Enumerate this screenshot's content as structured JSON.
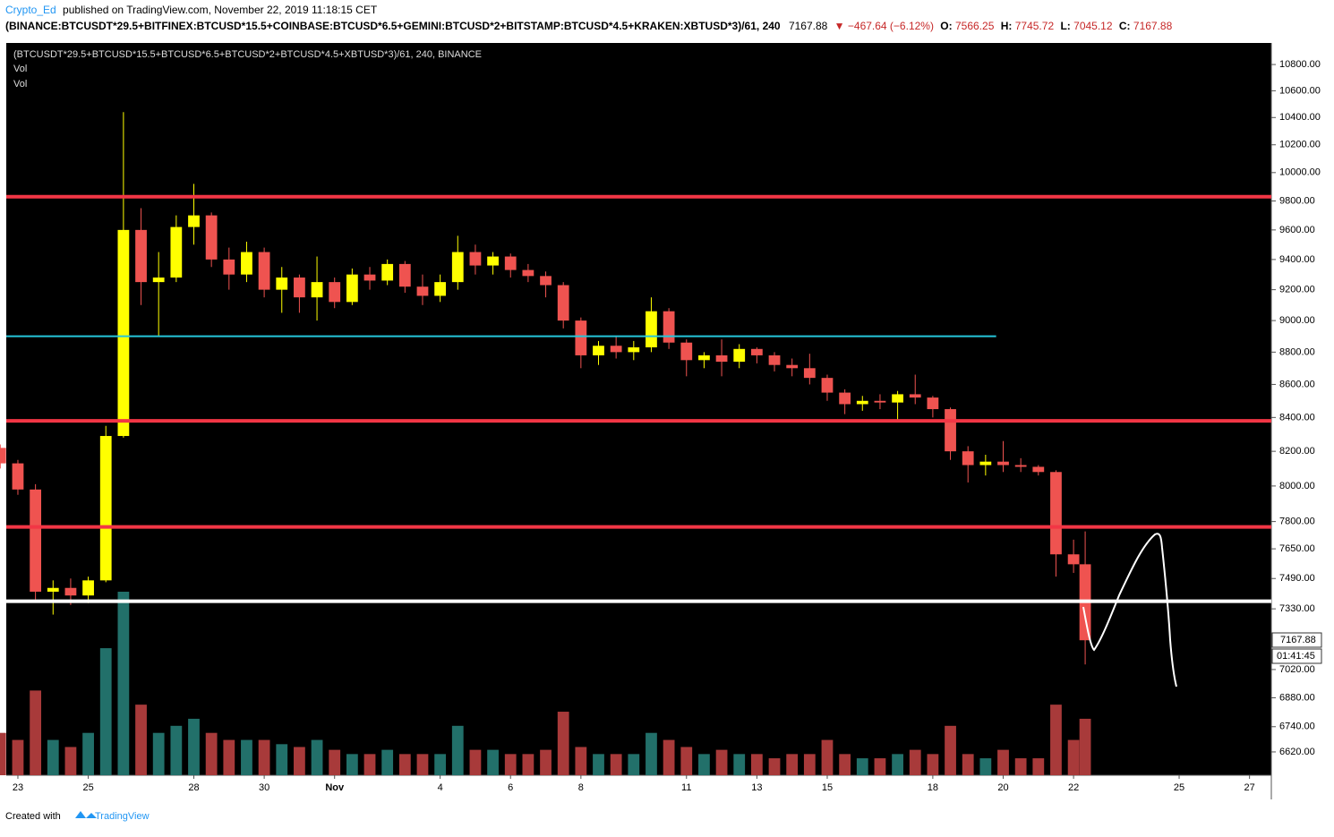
{
  "header": {
    "author": "Crypto_Ed",
    "published": "published on TradingView.com, November 22, 2019 11:18:15 CET",
    "symbol": "(BINANCE:BTCUSDT*29.5+BITFINEX:BTCUSD*15.5+COINBASE:BTCUSD*6.5+GEMINI:BTCUSD*2+BITSTAMP:BTCUSD*4.5+KRAKEN:XBTUSD*3)/61, 240",
    "last": "7167.88",
    "change": "▼ −467.64 (−6.12%)",
    "o_label": "O:",
    "o": "7566.25",
    "h_label": "H:",
    "h": "7745.72",
    "l_label": "L:",
    "l": "7045.12",
    "c_label": "C:",
    "c": "7167.88"
  },
  "chart_data": {
    "type": "candlestick",
    "log_scale": true,
    "grid": false,
    "legend_lines": [
      "(BTCUSDT*29.5+BTCUSD*15.5+BTCUSD*6.5+BTCUSD*2+BTCUSD*4.5+XBTUSD*3)/61, 240, BINANCE",
      "Vol",
      "Vol"
    ],
    "price_tag": "7167.88",
    "timer": "01:41:45",
    "up_color": "#ffff00",
    "down_color": "#ef5350",
    "vol_up_color": "#22706a",
    "vol_down_color": "#a83a3a",
    "x": [
      22.5,
      23,
      23.5,
      24,
      24.5,
      25,
      25.5,
      26,
      26.5,
      27,
      27.5,
      28,
      28.5,
      29,
      29.5,
      30,
      30.5,
      31,
      31.5,
      32,
      32.5,
      33,
      33.5,
      34,
      34.5,
      35,
      35.5,
      36,
      36.5,
      37,
      37.5,
      38,
      38.5,
      39,
      39.5,
      40,
      40.5,
      41,
      41.5,
      42,
      42.5,
      43,
      43.5,
      44,
      44.5,
      45,
      45.5,
      46,
      46.5,
      47,
      47.5,
      48,
      48.5,
      49,
      49.5,
      50,
      50.5,
      51,
      51.5,
      52,
      52.5,
      53,
      53.33
    ],
    "open": [
      8220,
      8130,
      7980,
      7420,
      7440,
      7400,
      7480,
      8290,
      9600,
      9250,
      9280,
      9620,
      9700,
      9400,
      9300,
      9450,
      9200,
      9280,
      9150,
      9250,
      9120,
      9300,
      9260,
      9370,
      9220,
      9160,
      9250,
      9450,
      9360,
      9420,
      9330,
      9290,
      9230,
      9000,
      8780,
      8840,
      8800,
      8830,
      9060,
      8860,
      8750,
      8780,
      8740,
      8820,
      8780,
      8720,
      8700,
      8640,
      8550,
      8480,
      8500,
      8490,
      8540,
      8520,
      8450,
      8200,
      8120,
      8140,
      8120,
      8110,
      8080,
      7620,
      7566.25
    ],
    "high": [
      8240,
      8150,
      8010,
      7480,
      7490,
      7500,
      8350,
      10440,
      9750,
      9450,
      9700,
      9920,
      9720,
      9480,
      9520,
      9480,
      9350,
      9300,
      9420,
      9280,
      9340,
      9350,
      9400,
      9390,
      9300,
      9300,
      9560,
      9500,
      9450,
      9440,
      9370,
      9320,
      9250,
      9020,
      8870,
      8900,
      8870,
      9150,
      9080,
      8880,
      8800,
      8880,
      8850,
      8830,
      8800,
      8760,
      8790,
      8660,
      8570,
      8530,
      8540,
      8560,
      8660,
      8530,
      8460,
      8230,
      8180,
      8260,
      8160,
      8120,
      8090,
      7700,
      7745.72
    ],
    "low": [
      8100,
      7950,
      7380,
      7300,
      7350,
      7360,
      7470,
      8280,
      9100,
      8900,
      9250,
      9500,
      9350,
      9200,
      9250,
      9150,
      9050,
      9050,
      9000,
      9080,
      9100,
      9200,
      9230,
      9180,
      9100,
      9120,
      9200,
      9300,
      9300,
      9280,
      9250,
      9150,
      8950,
      8700,
      8720,
      8760,
      8750,
      8800,
      8820,
      8650,
      8700,
      8650,
      8700,
      8730,
      8680,
      8650,
      8600,
      8500,
      8420,
      8440,
      8450,
      8380,
      8480,
      8400,
      8150,
      8020,
      8060,
      8080,
      8080,
      8060,
      7500,
      7520,
      7045.12
    ],
    "close": [
      8130,
      7980,
      7420,
      7440,
      7400,
      7480,
      8290,
      9600,
      9250,
      9280,
      9620,
      9700,
      9400,
      9300,
      9450,
      9200,
      9280,
      9150,
      9250,
      9120,
      9300,
      9260,
      9370,
      9220,
      9160,
      9250,
      9450,
      9360,
      9420,
      9330,
      9290,
      9230,
      9000,
      8780,
      8840,
      8800,
      8830,
      9060,
      8860,
      8750,
      8780,
      8740,
      8820,
      8780,
      8720,
      8700,
      8640,
      8550,
      8480,
      8500,
      8490,
      8540,
      8520,
      8450,
      8200,
      8120,
      8140,
      8120,
      8110,
      8080,
      7620,
      7566.25,
      7167.88
    ],
    "volume": [
      30,
      25,
      60,
      25,
      20,
      30,
      90,
      130,
      50,
      30,
      35,
      40,
      30,
      25,
      25,
      25,
      22,
      20,
      25,
      18,
      15,
      15,
      18,
      15,
      15,
      15,
      35,
      18,
      18,
      15,
      15,
      18,
      45,
      20,
      15,
      15,
      15,
      30,
      25,
      20,
      15,
      18,
      15,
      15,
      12,
      15,
      15,
      25,
      15,
      12,
      12,
      15,
      18,
      15,
      35,
      15,
      12,
      18,
      12,
      12,
      50,
      25,
      40
    ],
    "levels": [
      {
        "value": 9830,
        "color": "#f23645"
      },
      {
        "value": 8900,
        "color": "#26c6da",
        "x_end": 50.8
      },
      {
        "value": 8380,
        "color": "#f23645"
      },
      {
        "value": 7770,
        "color": "#f23645"
      },
      {
        "value": 7370,
        "color": "#ffffff"
      }
    ],
    "xlim": [
      22.67,
      58.62
    ],
    "xticks": [
      23,
      25,
      28,
      30,
      {
        "value": 32,
        "label": "Nov"
      },
      {
        "value": 35,
        "label": "4"
      },
      {
        "value": 37,
        "label": "6"
      },
      {
        "value": 39,
        "label": "8"
      },
      {
        "value": 42,
        "label": "11"
      },
      {
        "value": 44,
        "label": "13"
      },
      {
        "value": 46,
        "label": "15"
      },
      {
        "value": 49,
        "label": "18"
      },
      {
        "value": 51,
        "label": "20"
      },
      {
        "value": 53,
        "label": "22"
      },
      {
        "value": 56,
        "label": "25"
      },
      {
        "value": 58,
        "label": "27"
      }
    ],
    "ylim": [
      6511,
      10953
    ],
    "yticks": [
      {
        "value": 6620,
        "label": "6620.00"
      },
      {
        "value": 6740,
        "label": "6740.00"
      },
      {
        "value": 6880,
        "label": "6880.00"
      },
      {
        "value": 7020,
        "label": "7020.00"
      },
      {
        "value": 7330,
        "label": "7330.00"
      },
      {
        "value": 7490,
        "label": "7490.00"
      },
      {
        "value": 7650,
        "label": "7650.00"
      },
      {
        "value": 7800,
        "label": "7800.00"
      },
      {
        "value": 8000,
        "label": "8000.00"
      },
      {
        "value": 8200,
        "label": "8200.00"
      },
      {
        "value": 8400,
        "label": "8400.00"
      },
      {
        "value": 8600,
        "label": "8600.00"
      },
      {
        "value": 8800,
        "label": "8800.00"
      },
      {
        "value": 9000,
        "label": "9000.00"
      },
      {
        "value": 9200,
        "label": "9200.00"
      },
      {
        "value": 9400,
        "label": "9400.00"
      },
      {
        "value": 9600,
        "label": "9600.00"
      },
      {
        "value": 9800,
        "label": "9800.00"
      },
      {
        "value": 10000,
        "label": "10000.00"
      },
      {
        "value": 10200,
        "label": "10200.00"
      },
      {
        "value": 10400,
        "label": "10400.00"
      },
      {
        "value": 10600,
        "label": "10600.00"
      },
      {
        "value": 10800,
        "label": "10800.00"
      }
    ]
  },
  "footer": {
    "created": "Created with",
    "brand": "TradingView"
  }
}
